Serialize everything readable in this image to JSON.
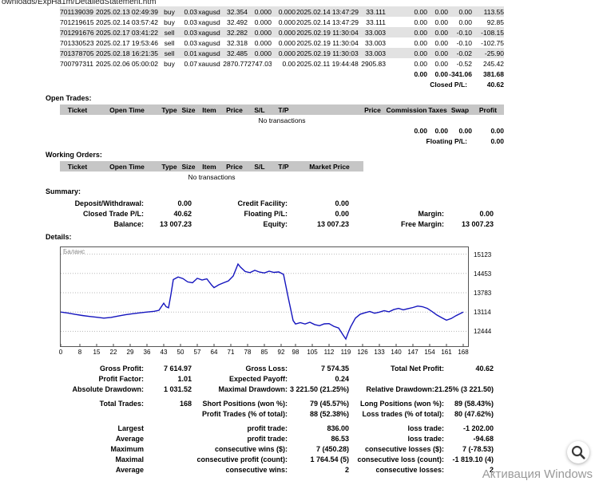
{
  "page": {
    "path_fragment": "ownloads/ExpHa1m/DetailedStatement.htm",
    "watermark": "Активация Windows"
  },
  "closed_trades": {
    "rows": [
      [
        "701139039",
        "2025.02.13 02:49:39",
        "buy",
        "0.03",
        "xagusd",
        "32.354",
        "0.000",
        "0.000",
        "2025.02.14 13:47:29",
        "33.111",
        "0.00",
        "0.00",
        "0.00",
        "113.55"
      ],
      [
        "701219615",
        "2025.02.14 03:57:42",
        "buy",
        "0.03",
        "xagusd",
        "32.492",
        "0.000",
        "0.000",
        "2025.02.14 13:47:29",
        "33.111",
        "0.00",
        "0.00",
        "0.00",
        "92.85"
      ],
      [
        "701291676",
        "2025.02.17 03:41:22",
        "sell",
        "0.03",
        "xagusd",
        "32.282",
        "0.000",
        "0.000",
        "2025.02.19 11:30:04",
        "33.003",
        "0.00",
        "0.00",
        "-0.10",
        "-108.15"
      ],
      [
        "701330523",
        "2025.02.17 19:53:46",
        "sell",
        "0.03",
        "xagusd",
        "32.318",
        "0.000",
        "0.000",
        "2025.02.19 11:30:04",
        "33.003",
        "0.00",
        "0.00",
        "-0.10",
        "-102.75"
      ],
      [
        "701378705",
        "2025.02.18 16:21:35",
        "sell",
        "0.01",
        "xagusd",
        "32.485",
        "0.000",
        "0.000",
        "2025.02.19 11:30:03",
        "33.003",
        "0.00",
        "0.00",
        "-0.02",
        "-25.90"
      ],
      [
        "700797311",
        "2025.02.06 05:00:02",
        "buy",
        "0.07",
        "xauusd",
        "2870.77",
        "2747.03",
        "0.00",
        "2025.02.11 19:44:48",
        "2905.83",
        "0.00",
        "0.00",
        "-0.52",
        "245.42"
      ]
    ],
    "totals": [
      "0.00",
      "0.00",
      "-341.06",
      "381.68"
    ],
    "closed_pl_label": "Closed P/L:",
    "closed_pl_value": "40.62"
  },
  "open_trades": {
    "title": "Open Trades:",
    "headers": [
      "Ticket",
      "Open Time",
      "Type",
      "Size",
      "Item",
      "Price",
      "S/L",
      "T/P",
      "",
      "Price",
      "Commission",
      "Taxes",
      "Swap",
      "Profit"
    ],
    "empty_text": "No transactions",
    "totals": [
      "0.00",
      "0.00",
      "0.00",
      "0.00"
    ],
    "floating_pl_label": "Floating P/L:",
    "floating_pl_value": "0.00"
  },
  "working_orders": {
    "title": "Working Orders:",
    "headers": [
      "Ticket",
      "Open Time",
      "Type",
      "Size",
      "Item",
      "Price",
      "S/L",
      "T/P",
      "Market Price"
    ],
    "empty_text": "No transactions"
  },
  "summary": {
    "title": "Summary:",
    "rows": [
      [
        "Deposit/Withdrawal:",
        "0.00",
        "Credit Facility:",
        "0.00",
        "",
        ""
      ],
      [
        "Closed Trade P/L:",
        "40.62",
        "Floating P/L:",
        "0.00",
        "Margin:",
        "0.00"
      ],
      [
        "Balance:",
        "13 007.23",
        "Equity:",
        "13 007.23",
        "Free Margin:",
        "13 007.23"
      ]
    ]
  },
  "details": {
    "title": "Details:",
    "chart_data": {
      "type": "line",
      "title": "",
      "series_name": "Баланс",
      "line_color": "#1414bE",
      "grid": true,
      "legend_position": "top-left",
      "xlim": [
        0,
        170
      ],
      "ylim": [
        11930,
        15360
      ],
      "x_ticks": [
        0,
        8,
        15,
        22,
        29,
        36,
        43,
        50,
        57,
        64,
        71,
        78,
        85,
        92,
        98,
        105,
        112,
        119,
        126,
        133,
        140,
        147,
        154,
        161,
        168
      ],
      "y_ticks": [
        12444,
        13114,
        13783,
        14453,
        15123
      ],
      "points": [
        [
          0,
          13114
        ],
        [
          3,
          13080
        ],
        [
          6,
          13035
        ],
        [
          9,
          12995
        ],
        [
          12,
          12962
        ],
        [
          15,
          12935
        ],
        [
          18,
          12905
        ],
        [
          21,
          12928
        ],
        [
          24,
          12975
        ],
        [
          27,
          13020
        ],
        [
          30,
          13055
        ],
        [
          33,
          13085
        ],
        [
          36,
          13115
        ],
        [
          39,
          13140
        ],
        [
          41,
          13175
        ],
        [
          43,
          13420
        ],
        [
          44,
          13300
        ],
        [
          45,
          13260
        ],
        [
          46,
          13720
        ],
        [
          47,
          14240
        ],
        [
          49,
          14330
        ],
        [
          51,
          14275
        ],
        [
          53,
          14160
        ],
        [
          55,
          14130
        ],
        [
          57,
          14285
        ],
        [
          59,
          14225
        ],
        [
          61,
          14265
        ],
        [
          63,
          14050
        ],
        [
          64,
          13960
        ],
        [
          66,
          14060
        ],
        [
          68,
          14130
        ],
        [
          70,
          14195
        ],
        [
          72,
          14365
        ],
        [
          74,
          14780
        ],
        [
          75,
          14675
        ],
        [
          77,
          14520
        ],
        [
          79,
          14480
        ],
        [
          81,
          14560
        ],
        [
          83,
          14500
        ],
        [
          85,
          14470
        ],
        [
          87,
          14530
        ],
        [
          89,
          14490
        ],
        [
          91,
          14505
        ],
        [
          93,
          14420
        ],
        [
          95,
          13600
        ],
        [
          97,
          12820
        ],
        [
          98,
          12700
        ],
        [
          100,
          12745
        ],
        [
          102,
          12700
        ],
        [
          104,
          12760
        ],
        [
          106,
          12680
        ],
        [
          108,
          12640
        ],
        [
          110,
          12705
        ],
        [
          112,
          12712
        ],
        [
          114,
          12620
        ],
        [
          116,
          12560
        ],
        [
          118,
          12300
        ],
        [
          119,
          12180
        ],
        [
          120,
          12400
        ],
        [
          121,
          12600
        ],
        [
          123,
          12905
        ],
        [
          125,
          13040
        ],
        [
          127,
          13090
        ],
        [
          129,
          13132
        ],
        [
          131,
          13072
        ],
        [
          133,
          13112
        ],
        [
          135,
          13160
        ],
        [
          137,
          13122
        ],
        [
          139,
          13200
        ],
        [
          141,
          13242
        ],
        [
          143,
          13190
        ],
        [
          145,
          13232
        ],
        [
          147,
          13272
        ],
        [
          149,
          13320
        ],
        [
          151,
          13300
        ],
        [
          153,
          13242
        ],
        [
          155,
          13130
        ],
        [
          157,
          13012
        ],
        [
          159,
          12920
        ],
        [
          161,
          12832
        ],
        [
          163,
          12890
        ],
        [
          165,
          12990
        ],
        [
          167,
          13072
        ],
        [
          168,
          13110
        ]
      ]
    },
    "stats_rows": [
      [
        "Gross Profit:",
        "7 614.97",
        "Gross Loss:",
        "7 574.35",
        "Total Net Profit:",
        "40.62"
      ],
      [
        "Profit Factor:",
        "1.01",
        "Expected Payoff:",
        "0.24",
        "",
        ""
      ],
      [
        "Absolute Drawdown:",
        "1 031.52",
        "Maximal Drawdown:",
        "3 221.50 (21.25%)",
        "Relative Drawdown:",
        "21.25% (3 221.50)"
      ],
      [
        "",
        "",
        "",
        "",
        "",
        ""
      ],
      [
        "Total Trades:",
        "168",
        "Short Positions (won %):",
        "79 (45.57%)",
        "Long Positions (won %):",
        "89 (58.43%)"
      ],
      [
        "",
        "",
        "Profit Trades (% of total):",
        "88 (52.38%)",
        "Loss trades (% of total):",
        "80 (47.62%)"
      ],
      [
        "",
        "",
        "",
        "",
        "",
        ""
      ],
      [
        "Largest",
        "",
        "profit trade:",
        "836.00",
        "loss trade:",
        "-1 202.00"
      ],
      [
        "Average",
        "",
        "profit trade:",
        "86.53",
        "loss trade:",
        "-94.68"
      ],
      [
        "Maximum",
        "",
        "consecutive wins ($):",
        "7 (450.28)",
        "consecutive losses ($):",
        "7 (-78.53)"
      ],
      [
        "Maximal",
        "",
        "consecutive profit (count):",
        "1 764.54 (5)",
        "consecutive loss (count):",
        "-1 819.10 (4)"
      ],
      [
        "Average",
        "",
        "consecutive wins:",
        "2",
        "consecutive losses:",
        "2"
      ]
    ]
  }
}
